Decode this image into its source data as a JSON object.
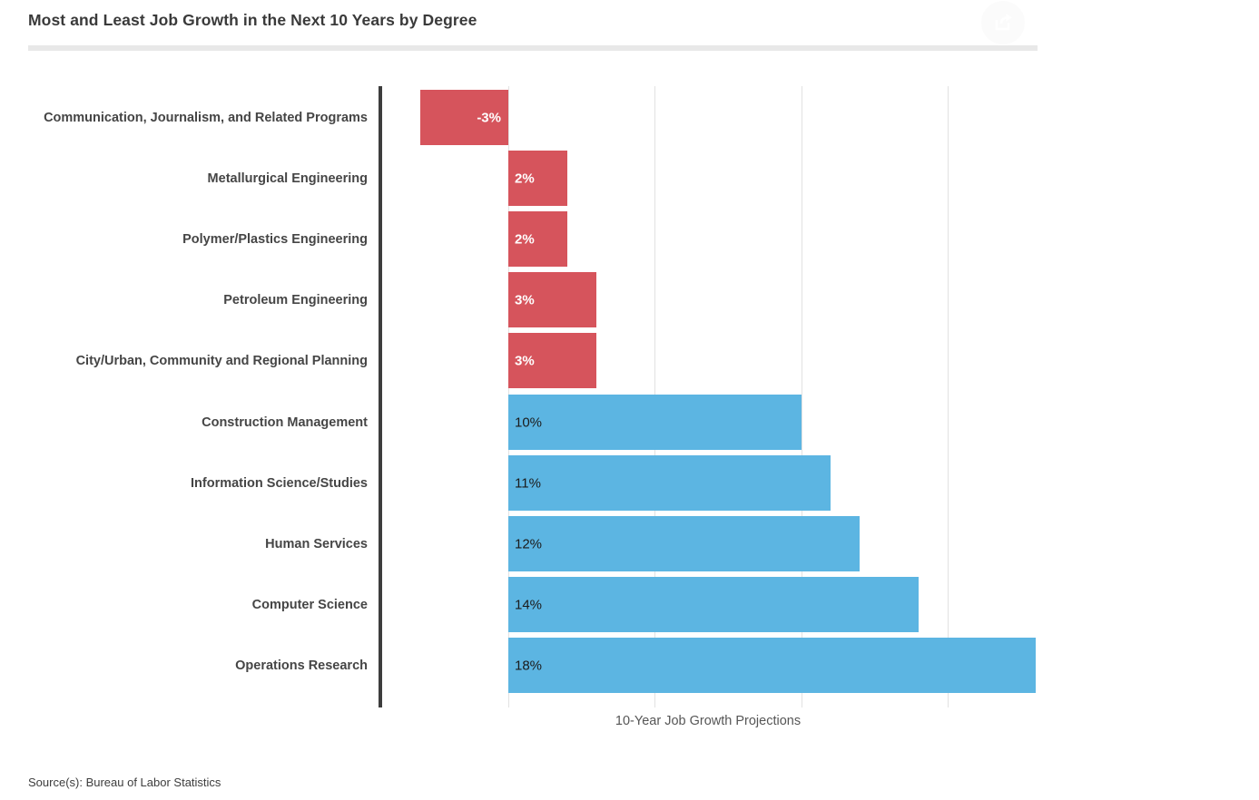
{
  "header": {
    "title": "Most and Least Job Growth in the Next 10 Years by Degree"
  },
  "chart_data": {
    "type": "bar",
    "orientation": "horizontal",
    "title": "Most and Least Job Growth in the Next 10 Years by Degree",
    "xlabel": "10-Year Job Growth Projections",
    "unit": "%",
    "xlim": [
      -4.4,
      18.6
    ],
    "grid": true,
    "gridline_values": [
      0,
      5,
      10,
      15
    ],
    "legend": false,
    "negative_color": "#d6545c",
    "positive_color": "#5cb5e2",
    "bars": [
      {
        "category": "Communication, Journalism, and Related Programs",
        "value": -3,
        "label": "-3%",
        "color": "#d6545c",
        "label_color": "#ffffff"
      },
      {
        "category": "Metallurgical Engineering",
        "value": 2,
        "label": "2%",
        "color": "#d6545c",
        "label_color": "#ffffff"
      },
      {
        "category": "Polymer/Plastics Engineering",
        "value": 2,
        "label": "2%",
        "color": "#d6545c",
        "label_color": "#ffffff"
      },
      {
        "category": "Petroleum Engineering",
        "value": 3,
        "label": "3%",
        "color": "#d6545c",
        "label_color": "#ffffff"
      },
      {
        "category": "City/Urban, Community and Regional Planning",
        "value": 3,
        "label": "3%",
        "color": "#d6545c",
        "label_color": "#ffffff"
      },
      {
        "category": "Construction Management",
        "value": 10,
        "label": "10%",
        "color": "#5cb5e2",
        "label_color": "#1b1b1b"
      },
      {
        "category": "Information Science/Studies",
        "value": 11,
        "label": "11%",
        "color": "#5cb5e2",
        "label_color": "#1b1b1b"
      },
      {
        "category": "Human Services",
        "value": 12,
        "label": "12%",
        "color": "#5cb5e2",
        "label_color": "#1b1b1b"
      },
      {
        "category": "Computer Science",
        "value": 14,
        "label": "14%",
        "color": "#5cb5e2",
        "label_color": "#1b1b1b"
      },
      {
        "category": "Operations Research",
        "value": 18,
        "label": "18%",
        "color": "#5cb5e2",
        "label_color": "#1b1b1b"
      }
    ]
  },
  "footer": {
    "source": "Source(s): Bureau of Labor Statistics"
  }
}
